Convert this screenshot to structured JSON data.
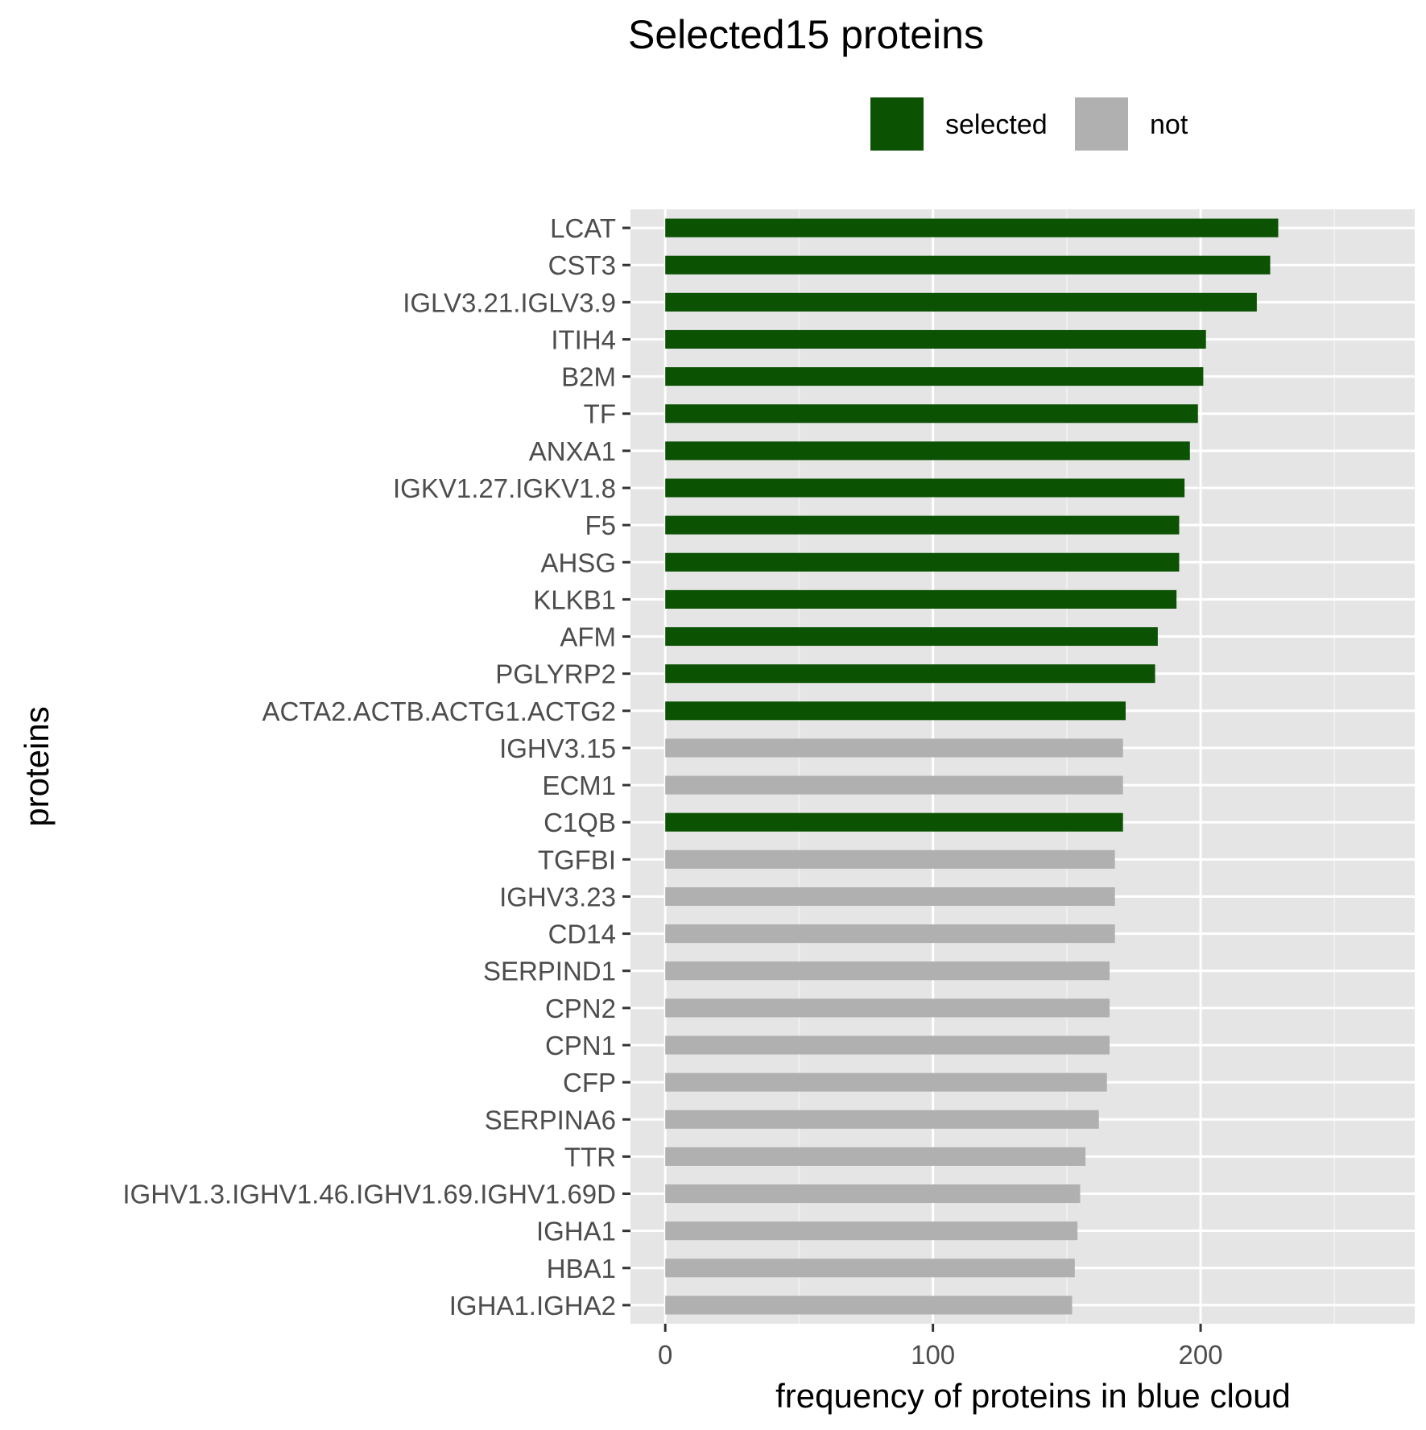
{
  "chart_data": {
    "type": "bar",
    "orientation": "horizontal",
    "title": "Selected15 proteins",
    "xlabel": "frequency of proteins in blue cloud",
    "ylabel": "proteins",
    "xlim": [
      -13,
      280
    ],
    "xticks": [
      0,
      100,
      200
    ],
    "grid": true,
    "legend_position": "top",
    "legend": [
      {
        "key": "selected",
        "label": "selected",
        "color": "#0b5202"
      },
      {
        "key": "not",
        "label": "not",
        "color": "#b0b0b0"
      }
    ],
    "categories": [
      "LCAT",
      "CST3",
      "IGLV3.21.IGLV3.9",
      "ITIH4",
      "B2M",
      "TF",
      "ANXA1",
      "IGKV1.27.IGKV1.8",
      "F5",
      "AHSG",
      "KLKB1",
      "AFM",
      "PGLYRP2",
      "ACTA2.ACTB.ACTG1.ACTG2",
      "IGHV3.15",
      "ECM1",
      "C1QB",
      "TGFBI",
      "IGHV3.23",
      "CD14",
      "SERPIND1",
      "CPN2",
      "CPN1",
      "CFP",
      "SERPINA6",
      "TTR",
      "IGHV1.3.IGHV1.46.IGHV1.69.IGHV1.69D",
      "IGHA1",
      "HBA1",
      "IGHA1.IGHA2"
    ],
    "values": [
      229,
      226,
      221,
      202,
      201,
      199,
      196,
      194,
      192,
      192,
      191,
      184,
      183,
      172,
      171,
      171,
      171,
      168,
      168,
      168,
      166,
      166,
      166,
      165,
      162,
      157,
      155,
      154,
      153,
      152
    ],
    "groups": [
      "selected",
      "selected",
      "selected",
      "selected",
      "selected",
      "selected",
      "selected",
      "selected",
      "selected",
      "selected",
      "selected",
      "selected",
      "selected",
      "selected",
      "not",
      "not",
      "selected",
      "not",
      "not",
      "not",
      "not",
      "not",
      "not",
      "not",
      "not",
      "not",
      "not",
      "not",
      "not",
      "not"
    ],
    "colors": {
      "panel_background": "#e5e5e5",
      "grid_major": "#ffffff",
      "grid_minor": "#f2f2f2",
      "tick": "#333333"
    }
  }
}
